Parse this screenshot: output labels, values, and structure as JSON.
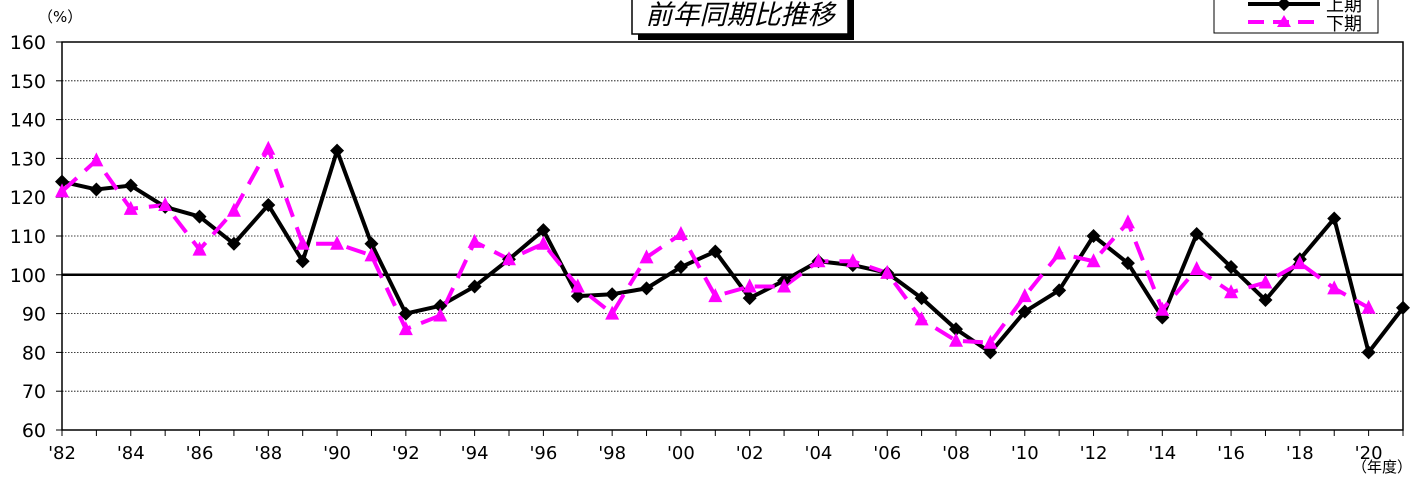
{
  "chart_data": {
    "type": "line",
    "title": "前年同期比推移",
    "ylabel": "（%）",
    "xlabel": "（年度）",
    "ylim": [
      60,
      160
    ],
    "yticks": [
      60,
      70,
      80,
      90,
      100,
      110,
      120,
      130,
      140,
      150,
      160
    ],
    "grid": "horizontal dotted",
    "reference_line": 100,
    "legend_position": "top-right",
    "x_tick_labels": [
      "'82",
      "'84",
      "'86",
      "'88",
      "'90",
      "'92",
      "'94",
      "'96",
      "'98",
      "'00",
      "'02",
      "'04",
      "'06",
      "'08",
      "'10",
      "'12",
      "'14",
      "'16",
      "'18",
      "'20"
    ],
    "x": [
      1982,
      1983,
      1984,
      1985,
      1986,
      1987,
      1988,
      1989,
      1990,
      1991,
      1992,
      1993,
      1994,
      1995,
      1996,
      1997,
      1998,
      1999,
      2000,
      2001,
      2002,
      2003,
      2004,
      2005,
      2006,
      2007,
      2008,
      2009,
      2010,
      2011,
      2012,
      2013,
      2014,
      2015,
      2016,
      2017,
      2018,
      2019,
      2020,
      2021
    ],
    "series": [
      {
        "name": "上期",
        "color": "#000000",
        "style": "solid",
        "marker": "diamond",
        "values": [
          124,
          122,
          123,
          117.5,
          115,
          108,
          118,
          103.5,
          132,
          108,
          90,
          92,
          97,
          104,
          111.5,
          94.5,
          95,
          96.5,
          102,
          106,
          94,
          98.5,
          103.5,
          102.5,
          100.5,
          94,
          86,
          80,
          90.5,
          96,
          110,
          103,
          89,
          110.5,
          102,
          93.5,
          104,
          114.5,
          80,
          91.5
        ]
      },
      {
        "name": "下期",
        "color": "#FF00FF",
        "style": "dashed",
        "marker": "triangle",
        "values": [
          121.5,
          129.5,
          117,
          118,
          106.5,
          116.5,
          132.5,
          108,
          108,
          105,
          86,
          89.5,
          108.5,
          104,
          108,
          97,
          90,
          104.5,
          110.5,
          94.5,
          97,
          97,
          103.5,
          103.5,
          100.5,
          88.5,
          83,
          82.5,
          94.5,
          105.5,
          103.5,
          113.5,
          91,
          101.5,
          95.5,
          98,
          103,
          96.5,
          91.5,
          null
        ]
      }
    ]
  }
}
